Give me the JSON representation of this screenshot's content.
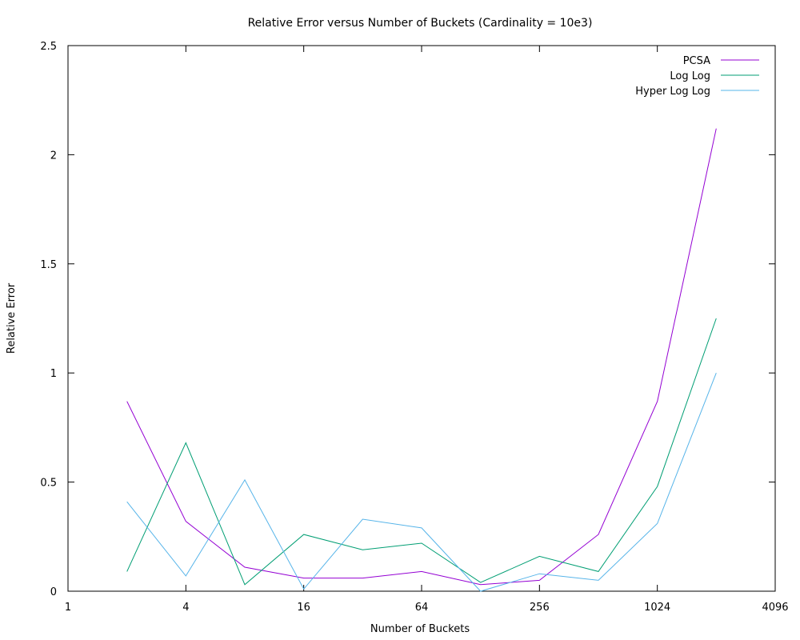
{
  "chart_data": {
    "type": "line",
    "title": "Relative Error versus Number of Buckets (Cardinality = 10e3)",
    "xlabel": "Number of Buckets",
    "ylabel": "Relative Error",
    "x_scale": "log2",
    "xlim": [
      1,
      4096
    ],
    "ylim": [
      0,
      2.5
    ],
    "x_ticks": [
      "1",
      "4",
      "16",
      "64",
      "256",
      "1024",
      "4096"
    ],
    "y_ticks": [
      "0",
      "0.5",
      "1",
      "1.5",
      "2",
      "2.5"
    ],
    "grid": false,
    "legend_position": "top-right",
    "x": [
      2,
      4,
      8,
      16,
      32,
      64,
      128,
      256,
      512,
      1024,
      2048
    ],
    "series": [
      {
        "name": "PCSA",
        "color": "#9400d3",
        "values": [
          0.87,
          0.32,
          0.11,
          0.06,
          0.06,
          0.09,
          0.03,
          0.05,
          0.26,
          0.87,
          2.12
        ]
      },
      {
        "name": "Log Log",
        "color": "#009e73",
        "values": [
          0.09,
          0.68,
          0.03,
          0.26,
          0.19,
          0.22,
          0.04,
          0.16,
          0.09,
          0.48,
          1.25
        ]
      },
      {
        "name": "Hyper Log Log",
        "color": "#56b4e9",
        "values": [
          0.41,
          0.07,
          0.51,
          0.01,
          0.33,
          0.29,
          0.0,
          0.08,
          0.05,
          0.31,
          1.0
        ]
      }
    ]
  }
}
